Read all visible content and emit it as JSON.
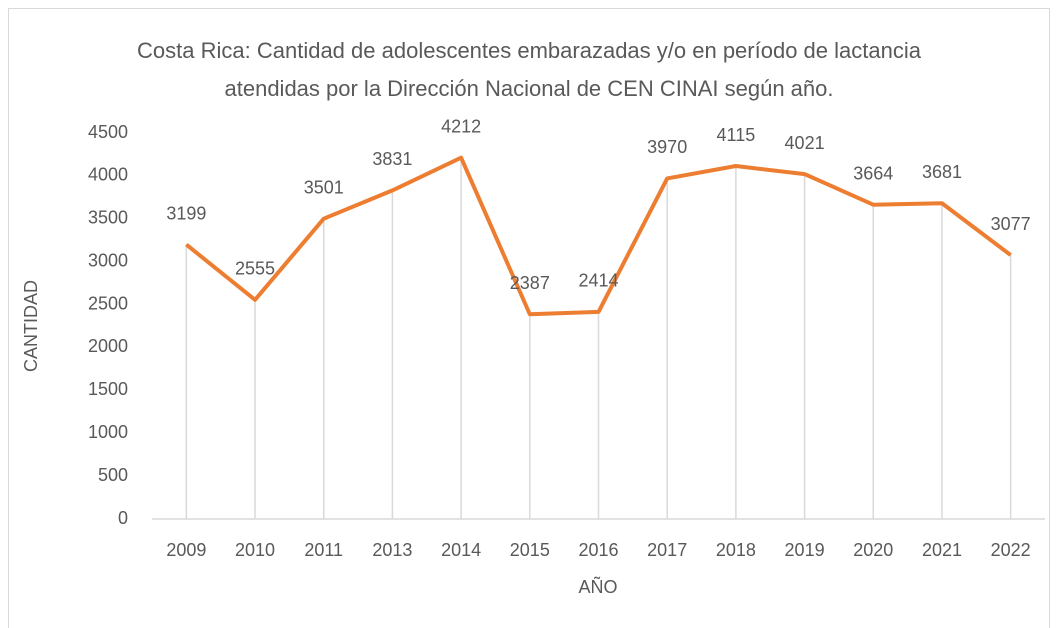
{
  "chart_data": {
    "type": "line",
    "title": "Costa Rica: Cantidad de adolescentes embarazadas y/o en período de lactancia atendidas por la Dirección Nacional de CEN CINAI según año.",
    "x_label": "AÑO",
    "y_label": "CANTIDAD",
    "categories": [
      "2009",
      "2010",
      "2011",
      "2013",
      "2014",
      "2015",
      "2016",
      "2017",
      "2018",
      "2019",
      "2020",
      "2021",
      "2022"
    ],
    "series": [
      {
        "name": "Cantidad",
        "color": "#ed7d31",
        "values": [
          3199,
          2555,
          3501,
          3831,
          4212,
          2387,
          2414,
          3970,
          4115,
          4021,
          3664,
          3681,
          3077
        ]
      }
    ],
    "ylim": [
      0,
      4500
    ],
    "yticks": [
      0,
      500,
      1000,
      1500,
      2000,
      2500,
      3000,
      3500,
      4000,
      4500
    ],
    "drop_lines": true,
    "data_labels": true
  }
}
